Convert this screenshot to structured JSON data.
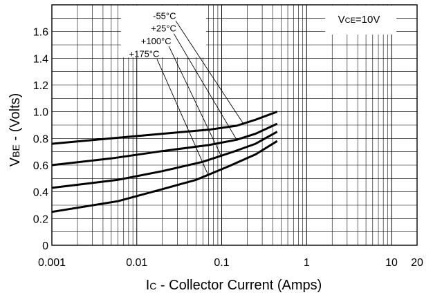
{
  "chart_data": {
    "type": "line",
    "title": "",
    "xlabel_main": "I",
    "xlabel_sub": "C",
    "xlabel_rest": " - Collector Current (Amps)",
    "ylabel_main": "V",
    "ylabel_sub": "BE",
    "ylabel_rest": " - (Volts)",
    "x_scale": "log",
    "xlim": [
      0.001,
      20
    ],
    "ylim": [
      0,
      1.8
    ],
    "grid": true,
    "legend": "none",
    "x_ticks": [
      {
        "value": 0.001,
        "label": "0.001"
      },
      {
        "value": 0.01,
        "label": "0.01"
      },
      {
        "value": 0.1,
        "label": "0.1"
      },
      {
        "value": 1,
        "label": "1"
      },
      {
        "value": 10,
        "label": "10"
      },
      {
        "value": 20,
        "label": "20"
      }
    ],
    "y_ticks": [
      {
        "value": 0,
        "label": "0"
      },
      {
        "value": 0.2,
        "label": "0.2"
      },
      {
        "value": 0.4,
        "label": "0.4"
      },
      {
        "value": 0.6,
        "label": "0.6"
      },
      {
        "value": 0.8,
        "label": "0.8"
      },
      {
        "value": 1.0,
        "label": "1.0"
      },
      {
        "value": 1.2,
        "label": "1.2"
      },
      {
        "value": 1.4,
        "label": "1.4"
      },
      {
        "value": 1.6,
        "label": "1.6"
      }
    ],
    "condition": {
      "main": "V",
      "sub": "CE",
      "rest": "=10V"
    },
    "series": [
      {
        "name": "-55°C",
        "x": [
          0.001,
          0.005,
          0.02,
          0.07,
          0.15,
          0.25,
          0.45
        ],
        "y": [
          0.76,
          0.8,
          0.835,
          0.865,
          0.895,
          0.94,
          1.0
        ],
        "label_pos": [
          0.0155,
          1.695
        ],
        "pointer_to": [
          0.18,
          0.91
        ]
      },
      {
        "name": "+25°C",
        "x": [
          0.001,
          0.005,
          0.02,
          0.07,
          0.15,
          0.25,
          0.45
        ],
        "y": [
          0.6,
          0.65,
          0.705,
          0.75,
          0.79,
          0.835,
          0.91
        ],
        "label_pos": [
          0.0147,
          1.6
        ],
        "pointer_to": [
          0.15,
          0.79
        ]
      },
      {
        "name": "+100°C",
        "x": [
          0.001,
          0.006,
          0.02,
          0.06,
          0.13,
          0.25,
          0.45
        ],
        "y": [
          0.43,
          0.49,
          0.555,
          0.625,
          0.695,
          0.76,
          0.85
        ],
        "label_pos": [
          0.0112,
          1.505
        ],
        "pointer_to": [
          0.1,
          0.66
        ]
      },
      {
        "name": "+175°C",
        "x": [
          0.001,
          0.006,
          0.02,
          0.05,
          0.12,
          0.25,
          0.45
        ],
        "y": [
          0.25,
          0.33,
          0.42,
          0.49,
          0.59,
          0.68,
          0.78
        ],
        "label_pos": [
          0.0081,
          1.41
        ],
        "pointer_to": [
          0.07,
          0.52
        ]
      }
    ]
  }
}
